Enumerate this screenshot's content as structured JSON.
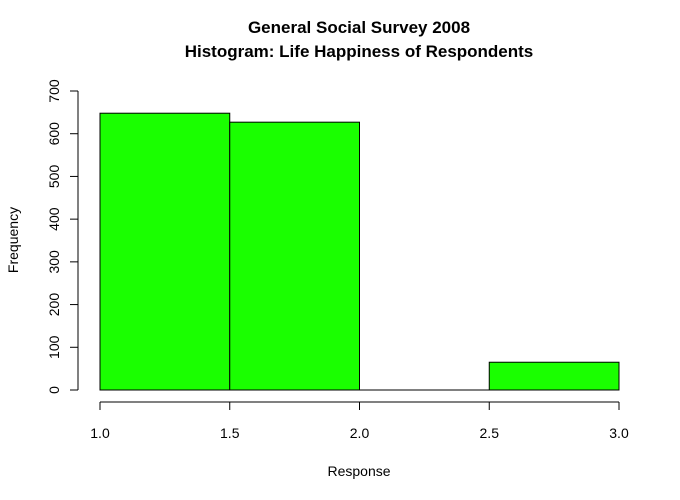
{
  "chart_data": {
    "type": "bar",
    "title": "General Social Survey 2008",
    "subtitle": "Histogram: Life Happiness of Respondents",
    "xlabel": "Response",
    "ylabel": "Frequency",
    "bar_color": "#1aff00",
    "border_color": "#000000",
    "xlim": [
      1.0,
      3.0
    ],
    "ylim": [
      0,
      700
    ],
    "x_ticks": [
      "1.0",
      "1.5",
      "2.0",
      "2.5",
      "3.0"
    ],
    "y_ticks": [
      "0",
      "100",
      "200",
      "300",
      "400",
      "500",
      "600",
      "700"
    ],
    "bins": [
      {
        "from": 1.0,
        "to": 1.5,
        "count": 648
      },
      {
        "from": 1.5,
        "to": 2.0,
        "count": 627
      },
      {
        "from": 2.0,
        "to": 2.5,
        "count": 0
      },
      {
        "from": 2.5,
        "to": 3.0,
        "count": 65
      }
    ],
    "grid": false,
    "legend": "none"
  }
}
